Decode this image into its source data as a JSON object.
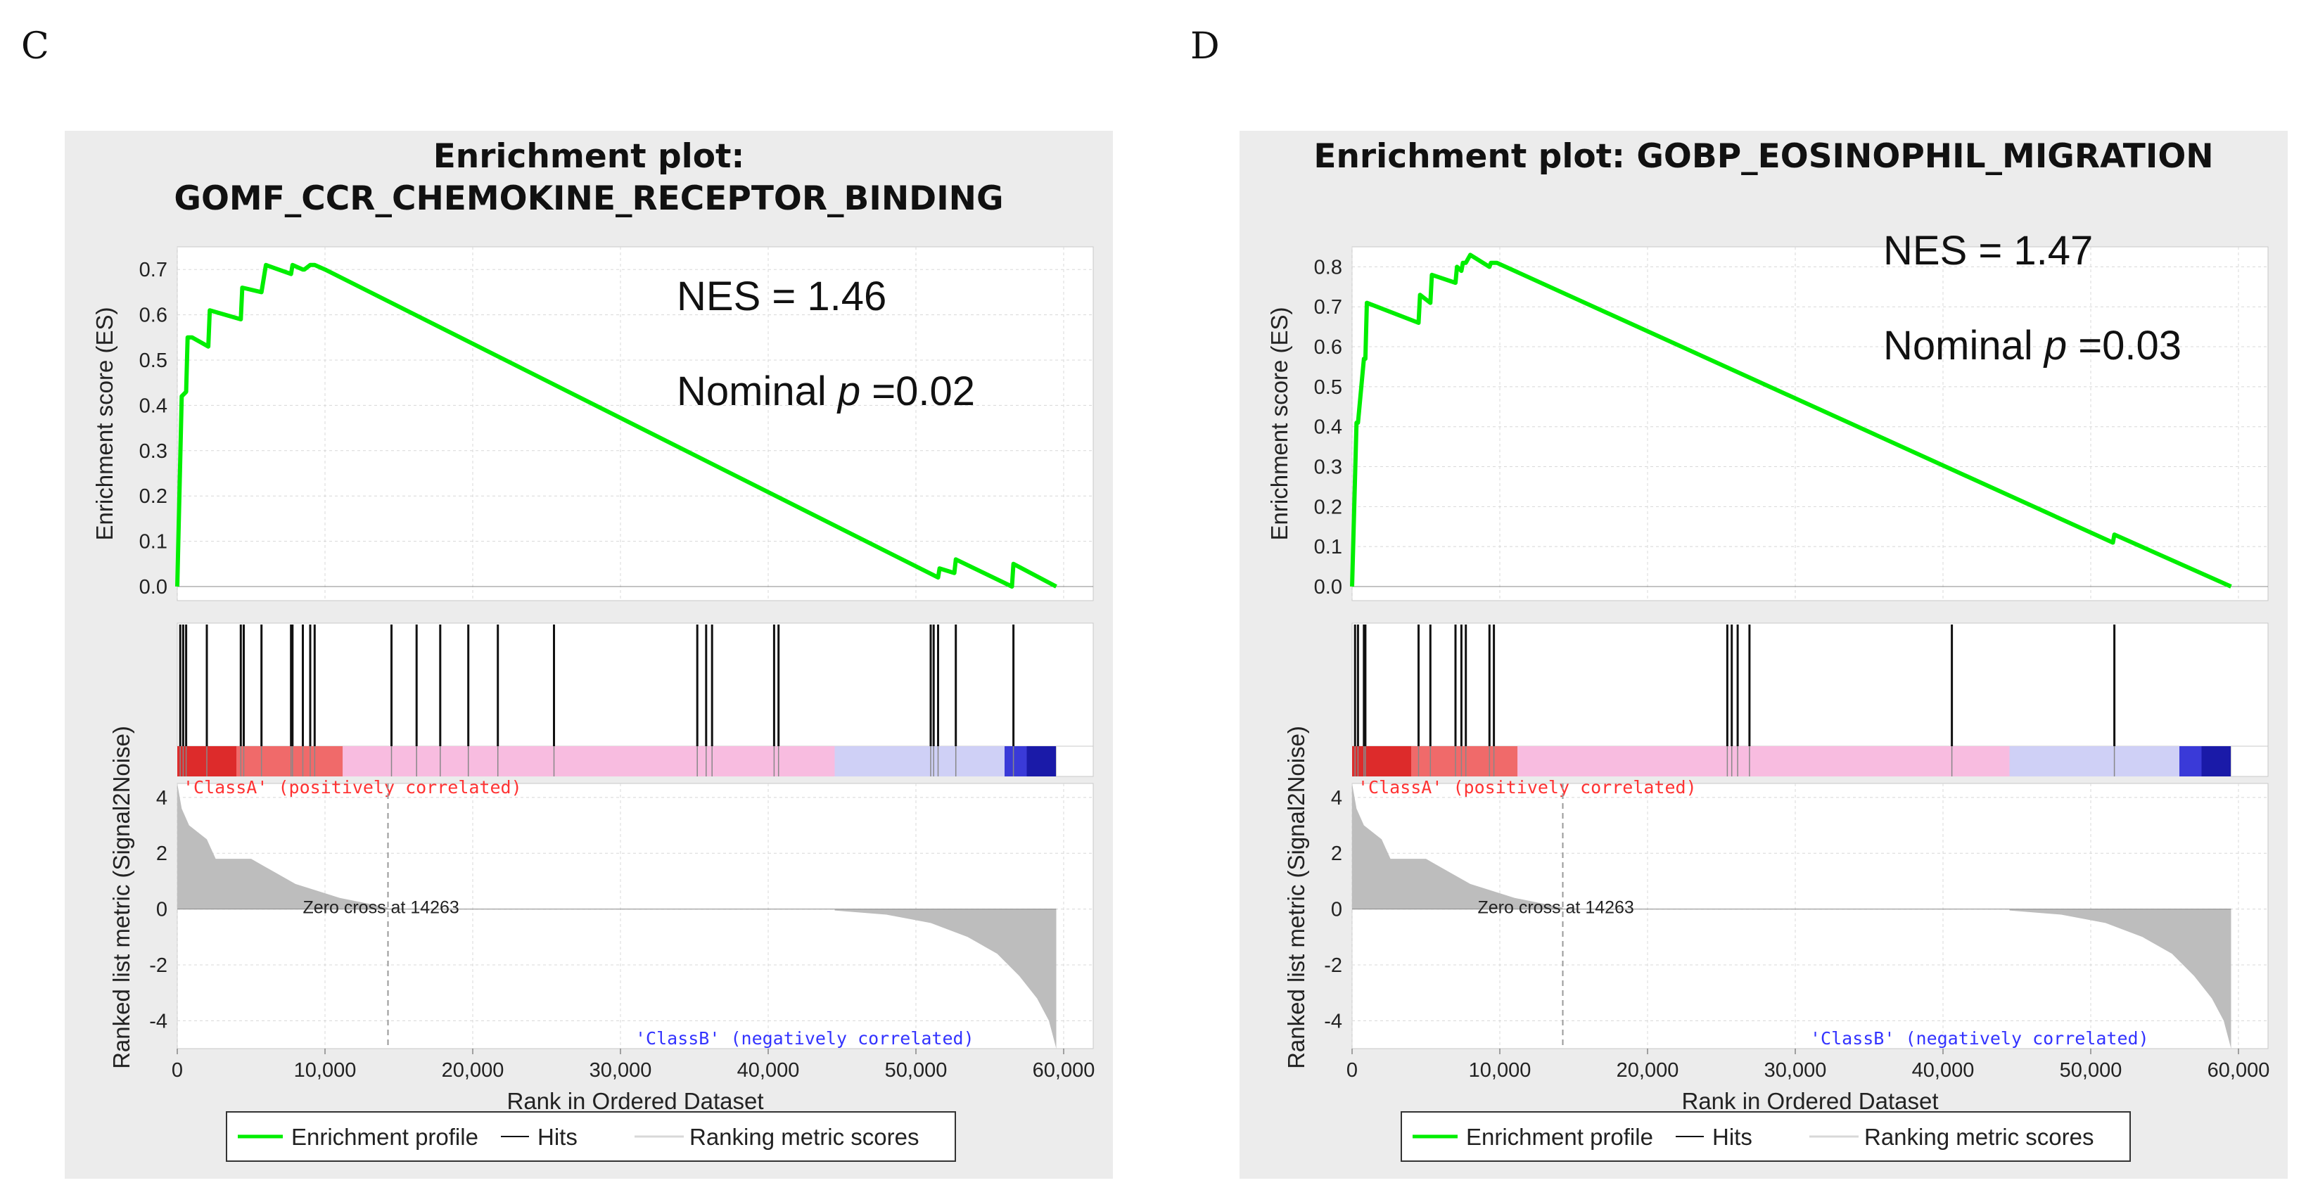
{
  "colors": {
    "profile": "#00ee00",
    "hits": "#111111",
    "metric": "#bdbdbd",
    "classA": "#ff3333",
    "classB": "#3333ff"
  },
  "chart_data": [
    {
      "panel": "C",
      "type": "line",
      "title_line1": "Enrichment plot:",
      "title_line2": "GOMF_CCR_CHEMOKINE_RECEPTOR_BINDING",
      "nes_text": "NES = 1.46",
      "pval_prefix": "Nominal ",
      "pval_var": "p",
      "pval_suffix": " =0.02",
      "ylabel": "Enrichment score (ES)",
      "ylabel2": "Ranked list metric (Signal2Noise)",
      "xlabel": "Rank in Ordered Dataset",
      "ylim": [
        0,
        0.75
      ],
      "yticks": [
        "0.0",
        "0.1",
        "0.2",
        "0.3",
        "0.4",
        "0.5",
        "0.6",
        "0.7"
      ],
      "xlim": [
        0,
        62000
      ],
      "xticks": [
        "0",
        "10,000",
        "20,000",
        "30,000",
        "40,000",
        "50,000",
        "60,000"
      ],
      "metric_ylim": [
        -5,
        4.5
      ],
      "metric_yticks": [
        "4",
        "2",
        "0",
        "-2",
        "-4"
      ],
      "class_a_label": "'ClassA' (positively correlated)",
      "class_b_label": "'ClassB' (negatively correlated)",
      "zero_cross_label": "Zero cross at 14263",
      "zero_cross": 14263,
      "es_curve": {
        "x": [
          0,
          300,
          600,
          700,
          1000,
          2100,
          2200,
          4300,
          4400,
          5700,
          6000,
          7700,
          7800,
          8500,
          8600,
          9000,
          9300,
          10000,
          51500,
          51600,
          52600,
          52700,
          56500,
          56600,
          59500
        ],
        "y": [
          0,
          0.42,
          0.43,
          0.55,
          0.55,
          0.53,
          0.61,
          0.59,
          0.66,
          0.65,
          0.71,
          0.69,
          0.71,
          0.7,
          0.7,
          0.71,
          0.71,
          0.7,
          0.02,
          0.04,
          0.03,
          0.06,
          0.0,
          0.05,
          0.0
        ]
      },
      "hits": [
        200,
        400,
        600,
        2000,
        4300,
        4500,
        5700,
        7700,
        7800,
        8500,
        9000,
        9300,
        14500,
        16200,
        17800,
        19700,
        21700,
        25500,
        35200,
        35800,
        36200,
        40400,
        40700,
        51000,
        51200,
        51500,
        52700,
        56600
      ]
    },
    {
      "panel": "D",
      "type": "line",
      "title_line1": "Enrichment plot: GOBP_EOSINOPHIL_MIGRATION",
      "title_line2": "",
      "nes_text": "NES = 1.47",
      "pval_prefix": "Nominal ",
      "pval_var": "p",
      "pval_suffix": " =0.03",
      "ylabel": "Enrichment score (ES)",
      "ylabel2": "Ranked list metric (Signal2Noise)",
      "xlabel": "Rank in Ordered Dataset",
      "ylim": [
        0,
        0.85
      ],
      "yticks": [
        "0.0",
        "0.1",
        "0.2",
        "0.3",
        "0.4",
        "0.5",
        "0.6",
        "0.7",
        "0.8"
      ],
      "xlim": [
        0,
        62000
      ],
      "xticks": [
        "0",
        "10,000",
        "20,000",
        "30,000",
        "40,000",
        "50,000",
        "60,000"
      ],
      "metric_ylim": [
        -5,
        4.5
      ],
      "metric_yticks": [
        "4",
        "2",
        "0",
        "-2",
        "-4"
      ],
      "class_a_label": "'ClassA' (positively correlated)",
      "class_b_label": "'ClassB' (negatively correlated)",
      "zero_cross_label": "Zero cross at 14263",
      "zero_cross": 14263,
      "es_curve": {
        "x": [
          0,
          300,
          400,
          800,
          900,
          1000,
          4500,
          4600,
          5300,
          5400,
          7000,
          7100,
          7400,
          7500,
          7700,
          8000,
          9300,
          9400,
          9800,
          51500,
          51600,
          59500
        ],
        "y": [
          0,
          0.41,
          0.41,
          0.57,
          0.57,
          0.71,
          0.66,
          0.73,
          0.71,
          0.78,
          0.76,
          0.8,
          0.79,
          0.81,
          0.81,
          0.83,
          0.8,
          0.81,
          0.81,
          0.11,
          0.13,
          0.0
        ]
      },
      "hits": [
        200,
        400,
        800,
        900,
        4500,
        5300,
        7000,
        7400,
        7700,
        9300,
        9600,
        25400,
        25700,
        26100,
        26900,
        40600,
        51600
      ]
    }
  ],
  "legend": {
    "profile": "Enrichment profile",
    "hits": "Hits",
    "metric": "Ranking metric scores"
  }
}
